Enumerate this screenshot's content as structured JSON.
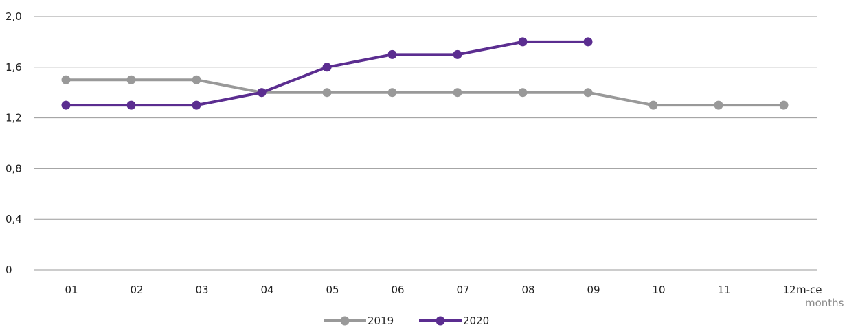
{
  "chart_data": {
    "type": "line",
    "categories": [
      "01",
      "02",
      "03",
      "04",
      "05",
      "06",
      "07",
      "08",
      "09",
      "10",
      "11",
      "12"
    ],
    "series": [
      {
        "name": "2019",
        "color": "#999999",
        "values": [
          1.5,
          1.5,
          1.5,
          1.4,
          1.4,
          1.4,
          1.4,
          1.4,
          1.4,
          1.3,
          1.3,
          1.3
        ]
      },
      {
        "name": "2020",
        "color": "#5b2d90",
        "values": [
          1.3,
          1.3,
          1.3,
          1.4,
          1.6,
          1.7,
          1.7,
          1.8,
          1.8,
          null,
          null,
          null
        ]
      }
    ],
    "ylim": [
      0,
      2.0
    ],
    "yticks": [
      "0",
      "0,4",
      "0,8",
      "1,2",
      "1,6",
      "2,0"
    ],
    "xlabel": "m-ce",
    "xlabel_secondary": "months",
    "grid": true,
    "legend_position": "bottom-center"
  }
}
